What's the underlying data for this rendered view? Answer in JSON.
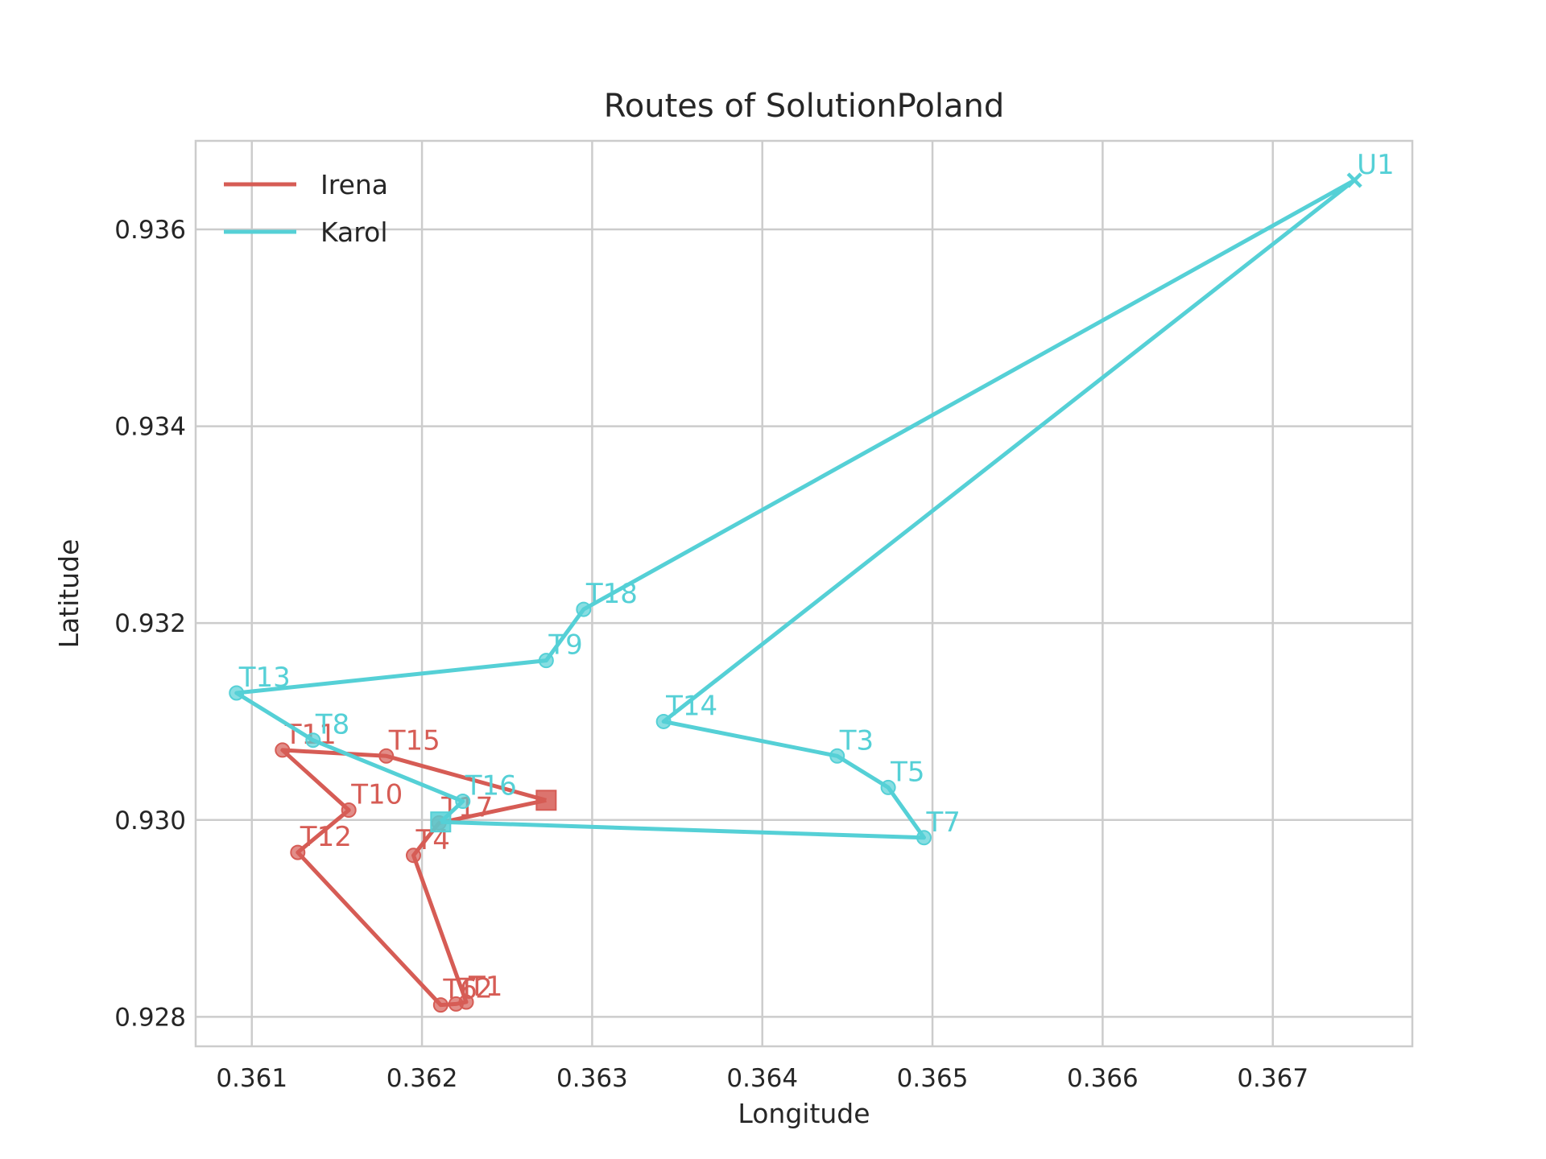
{
  "chart_data": {
    "type": "line",
    "title": "Routes of SolutionPoland",
    "xlabel": "Longitude",
    "ylabel": "Latitude",
    "xlim": [
      0.36067,
      0.36782
    ],
    "ylim": [
      0.9277,
      0.9369
    ],
    "xticks": [
      0.361,
      0.362,
      0.363,
      0.364,
      0.365,
      0.366,
      0.367
    ],
    "xtick_labels": [
      "0.361",
      "0.362",
      "0.363",
      "0.364",
      "0.365",
      "0.366",
      "0.367"
    ],
    "yticks": [
      0.928,
      0.93,
      0.932,
      0.934,
      0.936
    ],
    "ytick_labels": [
      "0.928",
      "0.930",
      "0.932",
      "0.934",
      "0.936"
    ],
    "grid": true,
    "legend_position": "top-left",
    "series": [
      {
        "name": "Irena",
        "color": "#d65c55",
        "start_marker": "square",
        "points": [
          {
            "label": "",
            "x": 0.36273,
            "y": 0.9302
          },
          {
            "label": "T15",
            "x": 0.36179,
            "y": 0.93065
          },
          {
            "label": "T11",
            "x": 0.36118,
            "y": 0.93071
          },
          {
            "label": "T10",
            "x": 0.36157,
            "y": 0.9301
          },
          {
            "label": "T12",
            "x": 0.36127,
            "y": 0.92967
          },
          {
            "label": "T6",
            "x": 0.36211,
            "y": 0.92812
          },
          {
            "label": "T2",
            "x": 0.3622,
            "y": 0.92813
          },
          {
            "label": "T1",
            "x": 0.36226,
            "y": 0.92815
          },
          {
            "label": "T4",
            "x": 0.36195,
            "y": 0.92964
          },
          {
            "label": "T17",
            "x": 0.3621,
            "y": 0.92997
          },
          {
            "label": "",
            "x": 0.36273,
            "y": 0.9302
          }
        ]
      },
      {
        "name": "Karol",
        "color": "#55d0d6",
        "start_marker": "square",
        "points": [
          {
            "label": "",
            "x": 0.36211,
            "y": 0.92998
          },
          {
            "label": "T16",
            "x": 0.36224,
            "y": 0.93019
          },
          {
            "label": "T8",
            "x": 0.36136,
            "y": 0.93081
          },
          {
            "label": "T13",
            "x": 0.36091,
            "y": 0.93129
          },
          {
            "label": "T9",
            "x": 0.36273,
            "y": 0.93162
          },
          {
            "label": "T18",
            "x": 0.36295,
            "y": 0.93214
          },
          {
            "label": "U1",
            "x": 0.36748,
            "y": 0.9365
          },
          {
            "label": "T14",
            "x": 0.36342,
            "y": 0.931
          },
          {
            "label": "T3",
            "x": 0.36444,
            "y": 0.93065
          },
          {
            "label": "T5",
            "x": 0.36474,
            "y": 0.93033
          },
          {
            "label": "T7",
            "x": 0.36495,
            "y": 0.92982
          },
          {
            "label": "",
            "x": 0.36211,
            "y": 0.92998
          }
        ]
      }
    ]
  }
}
